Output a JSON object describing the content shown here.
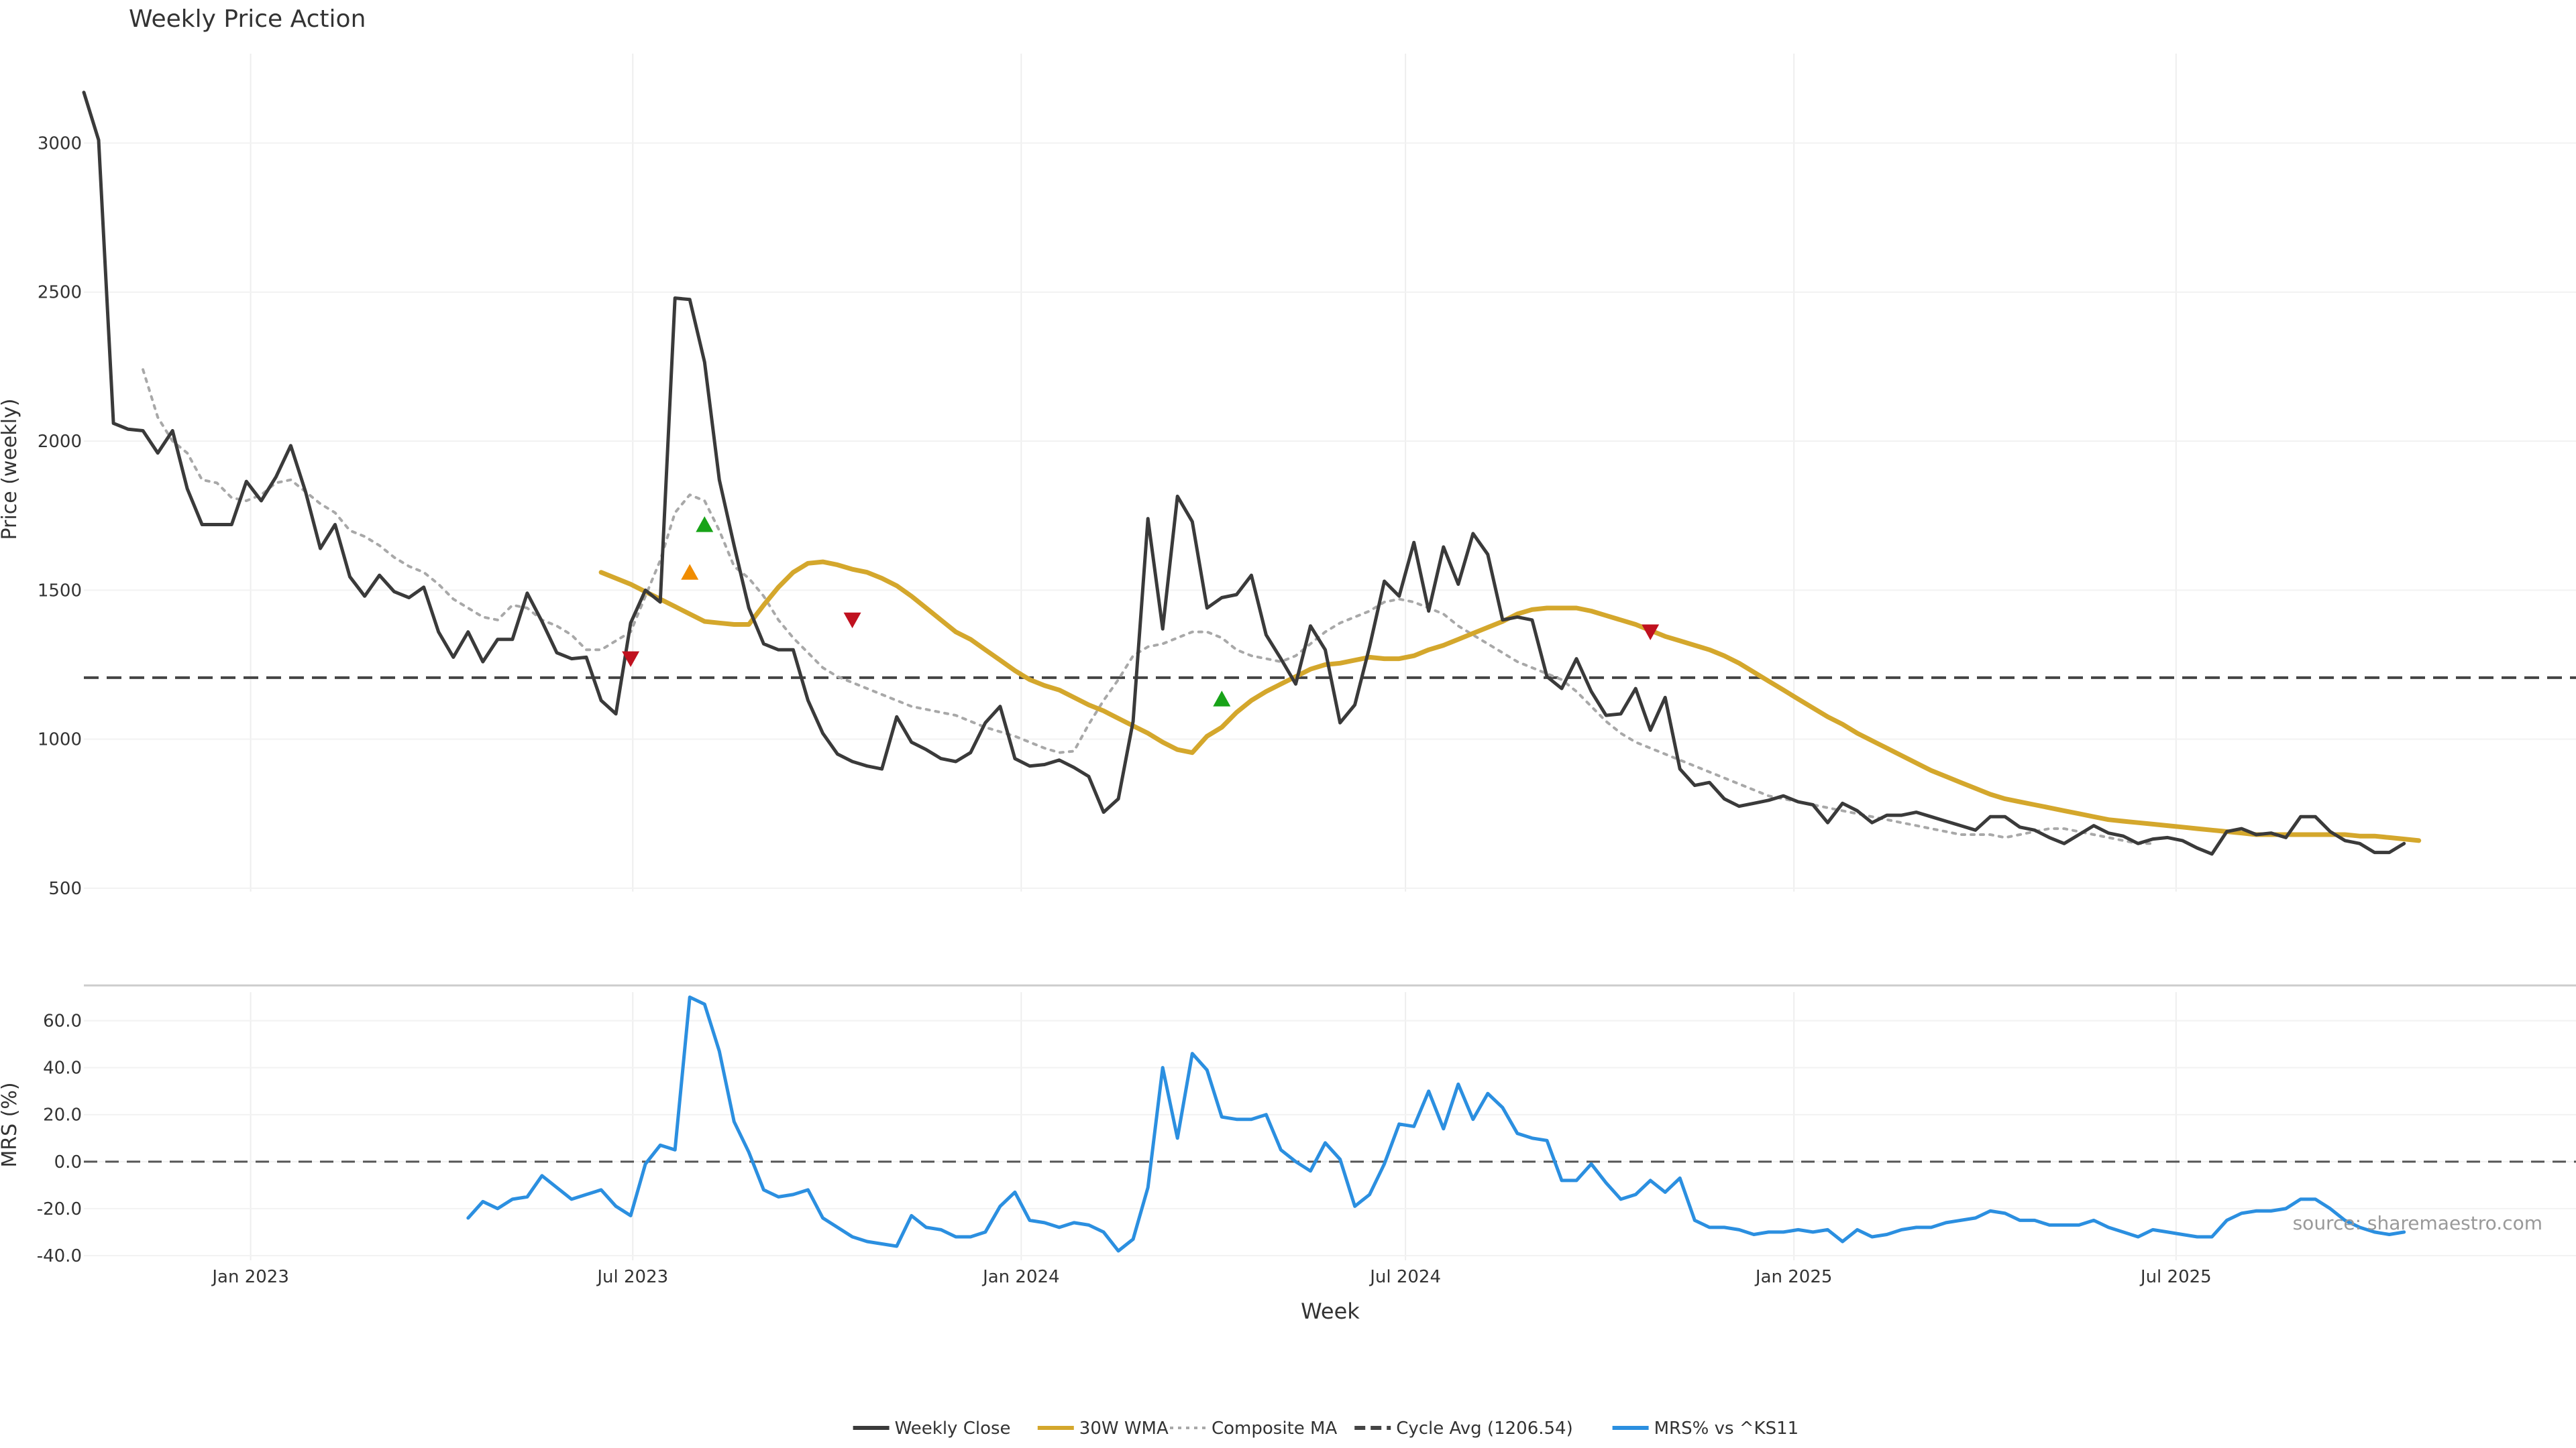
{
  "chart_data": [
    {
      "type": "line",
      "title": "Weekly Price Action",
      "ylabel": "Price (weekly)",
      "ylim": [
        500,
        3300
      ],
      "yticks": [
        500,
        1000,
        1500,
        2000,
        2500,
        3000
      ],
      "x_start_week": "2022-10-14",
      "cycle_avg": 1206.54,
      "series": [
        {
          "name": "Weekly Close",
          "color": "#3a3a3a",
          "values": [
            3170,
            3010,
            2060,
            2040,
            2035,
            1960,
            2035,
            1840,
            1720,
            1720,
            1720,
            1865,
            1800,
            1880,
            1985,
            1830,
            1640,
            1720,
            1545,
            1480,
            1550,
            1495,
            1475,
            1510,
            1360,
            1275,
            1360,
            1260,
            1335,
            1335,
            1490,
            1395,
            1290,
            1270,
            1275,
            1130,
            1085,
            1390,
            1500,
            1460,
            2480,
            2475,
            2265,
            1870,
            1650,
            1440,
            1320,
            1300,
            1300,
            1130,
            1020,
            950,
            925,
            910,
            900,
            1075,
            990,
            965,
            935,
            925,
            955,
            1055,
            1110,
            935,
            910,
            915,
            930,
            905,
            875,
            755,
            800,
            1060,
            1740,
            1370,
            1815,
            1730,
            1440,
            1475,
            1485,
            1550,
            1350,
            1270,
            1185,
            1380,
            1300,
            1055,
            1115,
            1310,
            1530,
            1480,
            1660,
            1430,
            1645,
            1520,
            1690,
            1620,
            1400,
            1410,
            1400,
            1210,
            1170,
            1270,
            1160,
            1080,
            1085,
            1170,
            1030,
            1140,
            900,
            845,
            855,
            800,
            775,
            785,
            795,
            810,
            790,
            780,
            720,
            785,
            760,
            720,
            745,
            745,
            755,
            740,
            725,
            710,
            695,
            740,
            740,
            705,
            695,
            670,
            650,
            680,
            710,
            685,
            675,
            650,
            665,
            670,
            660,
            635,
            615,
            690,
            700,
            680,
            685,
            670,
            740,
            740,
            690,
            660,
            650,
            620,
            620,
            650
          ]
        },
        {
          "name": "30W WMA",
          "color": "#d4a72c",
          "start_index": 35,
          "values": [
            1560,
            1540,
            1520,
            1495,
            1470,
            1445,
            1420,
            1395,
            1390,
            1385,
            1385,
            1450,
            1510,
            1560,
            1590,
            1595,
            1585,
            1570,
            1560,
            1540,
            1515,
            1480,
            1440,
            1400,
            1360,
            1335,
            1300,
            1265,
            1230,
            1200,
            1180,
            1165,
            1140,
            1115,
            1095,
            1070,
            1045,
            1020,
            990,
            965,
            955,
            1010,
            1040,
            1090,
            1130,
            1160,
            1185,
            1210,
            1235,
            1250,
            1255,
            1265,
            1275,
            1270,
            1270,
            1280,
            1300,
            1315,
            1335,
            1355,
            1375,
            1395,
            1420,
            1435,
            1440,
            1440,
            1440,
            1430,
            1415,
            1400,
            1385,
            1365,
            1345,
            1330,
            1315,
            1300,
            1280,
            1255,
            1225,
            1195,
            1165,
            1135,
            1105,
            1075,
            1050,
            1020,
            995,
            970,
            945,
            920,
            895,
            875,
            855,
            835,
            815,
            800,
            790,
            780,
            770,
            760,
            750,
            740,
            730,
            725,
            720,
            715,
            710,
            705,
            700,
            695,
            690,
            685,
            680,
            680,
            680,
            680,
            680,
            680,
            680,
            675,
            675,
            670,
            665,
            660
          ]
        },
        {
          "name": "Composite MA",
          "color": "#a8a8a8",
          "start_index": 4,
          "values": [
            2240,
            2080,
            2000,
            1960,
            1870,
            1860,
            1810,
            1800,
            1820,
            1860,
            1870,
            1830,
            1790,
            1760,
            1700,
            1680,
            1650,
            1610,
            1580,
            1560,
            1520,
            1470,
            1440,
            1410,
            1400,
            1450,
            1440,
            1400,
            1380,
            1350,
            1300,
            1300,
            1330,
            1360,
            1480,
            1600,
            1760,
            1820,
            1800,
            1700,
            1580,
            1540,
            1480,
            1400,
            1340,
            1290,
            1240,
            1210,
            1190,
            1170,
            1150,
            1130,
            1110,
            1100,
            1090,
            1080,
            1060,
            1040,
            1025,
            1010,
            990,
            970,
            955,
            960,
            1050,
            1130,
            1200,
            1280,
            1310,
            1320,
            1340,
            1360,
            1360,
            1340,
            1300,
            1280,
            1270,
            1260,
            1280,
            1320,
            1360,
            1390,
            1410,
            1430,
            1460,
            1470,
            1460,
            1440,
            1420,
            1380,
            1350,
            1320,
            1290,
            1260,
            1240,
            1220,
            1200,
            1160,
            1110,
            1060,
            1020,
            990,
            970,
            950,
            930,
            910,
            890,
            870,
            850,
            830,
            810,
            800,
            790,
            780,
            770,
            760,
            750,
            740,
            730,
            720,
            710,
            700,
            690,
            680,
            680,
            680,
            670,
            680,
            690,
            700,
            700,
            690,
            680,
            670,
            660,
            650,
            650
          ]
        }
      ],
      "annotations": [
        {
          "type": "sell",
          "index": 37,
          "value": 1270,
          "color": "#c0111f"
        },
        {
          "type": "buy",
          "index": 41,
          "value": 1560,
          "color": "#f08c00"
        },
        {
          "type": "buy",
          "index": 42,
          "value": 1720,
          "color": "#18a318"
        },
        {
          "type": "sell",
          "index": 52,
          "value": 1400,
          "color": "#c0111f"
        },
        {
          "type": "buy",
          "index": 77,
          "value": 1135,
          "color": "#18a318"
        },
        {
          "type": "sell",
          "index": 106,
          "value": 1360,
          "color": "#c0111f"
        }
      ]
    },
    {
      "type": "line",
      "ylabel": "MRS (%)",
      "ylim": [
        -42,
        75
      ],
      "yticks": [
        -40,
        -20,
        0,
        20,
        40,
        60
      ],
      "ytick_labels": [
        "-40.0",
        "-20.0",
        "0.0",
        "20.0",
        "40.0",
        "60.0"
      ],
      "xlabel": "Week",
      "xtick_labels": [
        "Jan 2023",
        "Jul 2023",
        "Jan 2024",
        "Jul 2024",
        "Jan 2025",
        "Jul 2025"
      ],
      "xtick_dates": [
        "2023-01-01",
        "2023-07-01",
        "2024-01-01",
        "2024-07-01",
        "2025-01-01",
        "2025-07-01"
      ],
      "zero_line": 0,
      "series": [
        {
          "name": "MRS% vs ^KS11",
          "color": "#2b8fe0",
          "start_index": 26,
          "values": [
            -24,
            -17,
            -20,
            -16,
            -15,
            -6,
            -11,
            -16,
            -14,
            -12,
            -19,
            -23,
            -1,
            7,
            5,
            70,
            67,
            47,
            17,
            4,
            -12,
            -15,
            -14,
            -12,
            -24,
            -28,
            -32,
            -34,
            -35,
            -36,
            -23,
            -28,
            -29,
            -32,
            -32,
            -30,
            -19,
            -13,
            -25,
            -26,
            -28,
            -26,
            -27,
            -30,
            -38,
            -33,
            -11,
            40,
            10,
            46,
            39,
            19,
            18,
            18,
            20,
            5,
            0,
            -4,
            8,
            1,
            -19,
            -14,
            -1,
            16,
            15,
            30,
            14,
            33,
            18,
            29,
            23,
            12,
            10,
            9,
            -8,
            -8,
            -1,
            -9,
            -16,
            -14,
            -8,
            -13,
            -7,
            -25,
            -28,
            -28,
            -29,
            -31,
            -30,
            -30,
            -29,
            -30,
            -29,
            -34,
            -29,
            -32,
            -31,
            -29,
            -28,
            -28,
            -26,
            -25,
            -24,
            -21,
            -22,
            -25,
            -25,
            -27,
            -27,
            -27,
            -25,
            -28,
            -30,
            -32,
            -29,
            -30,
            -31,
            -32,
            -32,
            -25,
            -22,
            -21,
            -21,
            -20,
            -16,
            -16,
            -20,
            -25,
            -28,
            -30,
            -31,
            -30
          ]
        }
      ]
    }
  ],
  "legend": {
    "entries": [
      {
        "label": "Weekly Close",
        "color": "#3a3a3a",
        "style": "solid"
      },
      {
        "label": "30W WMA",
        "color": "#d4a72c",
        "style": "solid"
      },
      {
        "label": "Composite MA",
        "color": "#a8a8a8",
        "style": "dotted"
      },
      {
        "label": "Cycle Avg (1206.54)",
        "color": "#444444",
        "style": "dashed"
      },
      {
        "label": "MRS% vs ^KS11",
        "color": "#2b8fe0",
        "style": "solid"
      }
    ]
  },
  "watermark": "source: sharemaestro.com"
}
